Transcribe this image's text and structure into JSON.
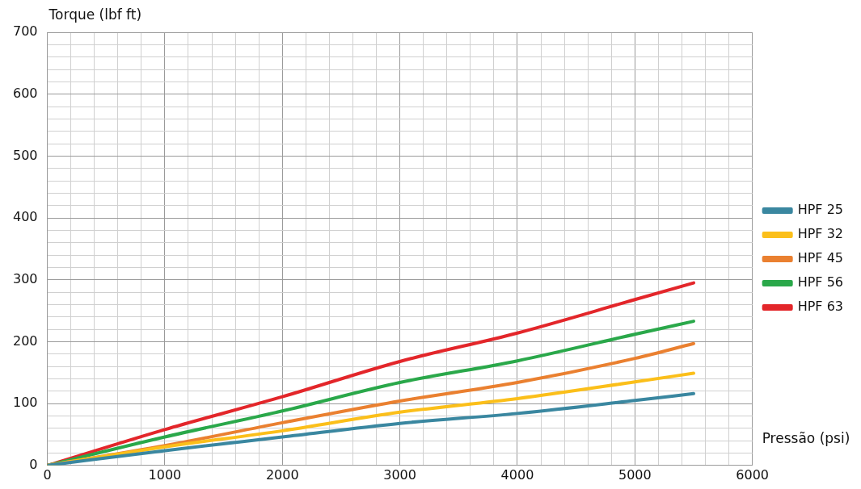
{
  "chart_data": {
    "type": "line",
    "xlabel": "Pressão (psi)",
    "ylabel": "Torque (lbf ft)",
    "x": [
      0,
      1000,
      2000,
      3000,
      4000,
      5000,
      5500
    ],
    "series": [
      {
        "name": "HPF 25",
        "color": "#3a87a0",
        "values": [
          0,
          24,
          46,
          68,
          84,
          105,
          116
        ]
      },
      {
        "name": "HPF 32",
        "color": "#fbbf1a",
        "values": [
          0,
          30,
          56,
          86,
          108,
          135,
          149
        ]
      },
      {
        "name": "HPF 45",
        "color": "#ea8030",
        "values": [
          0,
          32,
          69,
          104,
          134,
          173,
          197
        ]
      },
      {
        "name": "HPF 56",
        "color": "#2aa84a",
        "values": [
          0,
          46,
          88,
          134,
          169,
          212,
          233
        ]
      },
      {
        "name": "HPF 63",
        "color": "#e3262a",
        "values": [
          0,
          58,
          111,
          168,
          214,
          268,
          295
        ]
      }
    ],
    "xlim": [
      0,
      6000
    ],
    "xticks": [
      0,
      {
        "value": 200,
        "label": null
      },
      {
        "value": 400,
        "label": null
      },
      {
        "value": 600,
        "label": null
      },
      {
        "value": 800,
        "label": null
      },
      1000,
      {
        "value": 1200,
        "label": null
      },
      {
        "value": 1400,
        "label": null
      },
      {
        "value": 1600,
        "label": null
      },
      {
        "value": 1800,
        "label": null
      },
      2000,
      {
        "value": 2200,
        "label": null
      },
      {
        "value": 2400,
        "label": null
      },
      {
        "value": 2600,
        "label": null
      },
      {
        "value": 2800,
        "label": null
      },
      3000,
      {
        "value": 3200,
        "label": null
      },
      {
        "value": 3400,
        "label": null
      },
      {
        "value": 3600,
        "label": null
      },
      {
        "value": 3800,
        "label": null
      },
      4000,
      {
        "value": 4200,
        "label": null
      },
      {
        "value": 4400,
        "label": null
      },
      {
        "value": 4600,
        "label": null
      },
      {
        "value": 4800,
        "label": null
      },
      5000,
      {
        "value": 5200,
        "label": null
      },
      {
        "value": 5400,
        "label": null
      },
      {
        "value": 5600,
        "label": null
      },
      {
        "value": 5800,
        "label": null
      },
      6000
    ],
    "ylim": [
      0,
      700
    ],
    "yticks": [
      0,
      {
        "value": 20,
        "label": null
      },
      {
        "value": 40,
        "label": null
      },
      {
        "value": 60,
        "label": null
      },
      {
        "value": 80,
        "label": null
      },
      100,
      {
        "value": 120,
        "label": null
      },
      {
        "value": 140,
        "label": null
      },
      {
        "value": 160,
        "label": null
      },
      {
        "value": 180,
        "label": null
      },
      200,
      {
        "value": 220,
        "label": null
      },
      {
        "value": 240,
        "label": null
      },
      {
        "value": 260,
        "label": null
      },
      {
        "value": 280,
        "label": null
      },
      300,
      {
        "value": 320,
        "label": null
      },
      {
        "value": 340,
        "label": null
      },
      {
        "value": 360,
        "label": null
      },
      {
        "value": 380,
        "label": null
      },
      400,
      {
        "value": 420,
        "label": null
      },
      {
        "value": 440,
        "label": null
      },
      {
        "value": 460,
        "label": null
      },
      {
        "value": 480,
        "label": null
      },
      500,
      {
        "value": 520,
        "label": null
      },
      {
        "value": 540,
        "label": null
      },
      {
        "value": 560,
        "label": null
      },
      {
        "value": 580,
        "label": null
      },
      600,
      {
        "value": 620,
        "label": null
      },
      {
        "value": 640,
        "label": null
      },
      {
        "value": 660,
        "label": null
      },
      {
        "value": 680,
        "label": null
      },
      700
    ],
    "grid": true,
    "legend": "right",
    "marker": "none",
    "line_style": "solid"
  }
}
